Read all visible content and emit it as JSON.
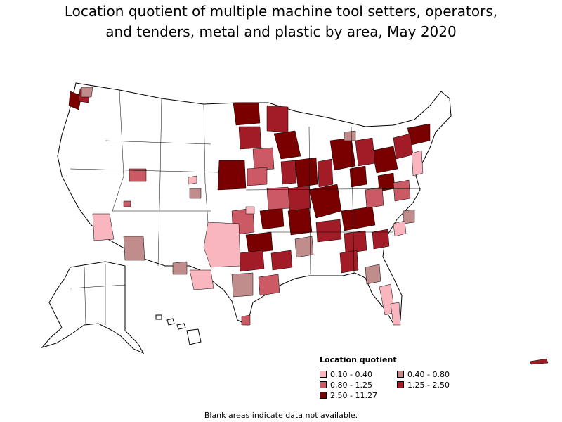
{
  "title_line1": "Location quotient of multiple machine tool setters, operators,",
  "title_line2": "and tenders, metal and plastic by area, May 2020",
  "legend": {
    "title": "Location quotient",
    "items": [
      {
        "label": "0.10 - 0.40",
        "color": "#f9b6bf"
      },
      {
        "label": "0.40 - 0.80",
        "color": "#c08c8c"
      },
      {
        "label": "0.80 - 1.25",
        "color": "#cc5a64"
      },
      {
        "label": "1.25 - 2.50",
        "color": "#a11c26"
      },
      {
        "label": "2.50 - 11.27",
        "color": "#7a0000"
      }
    ]
  },
  "footnote": "Blank areas indicate data not available."
}
